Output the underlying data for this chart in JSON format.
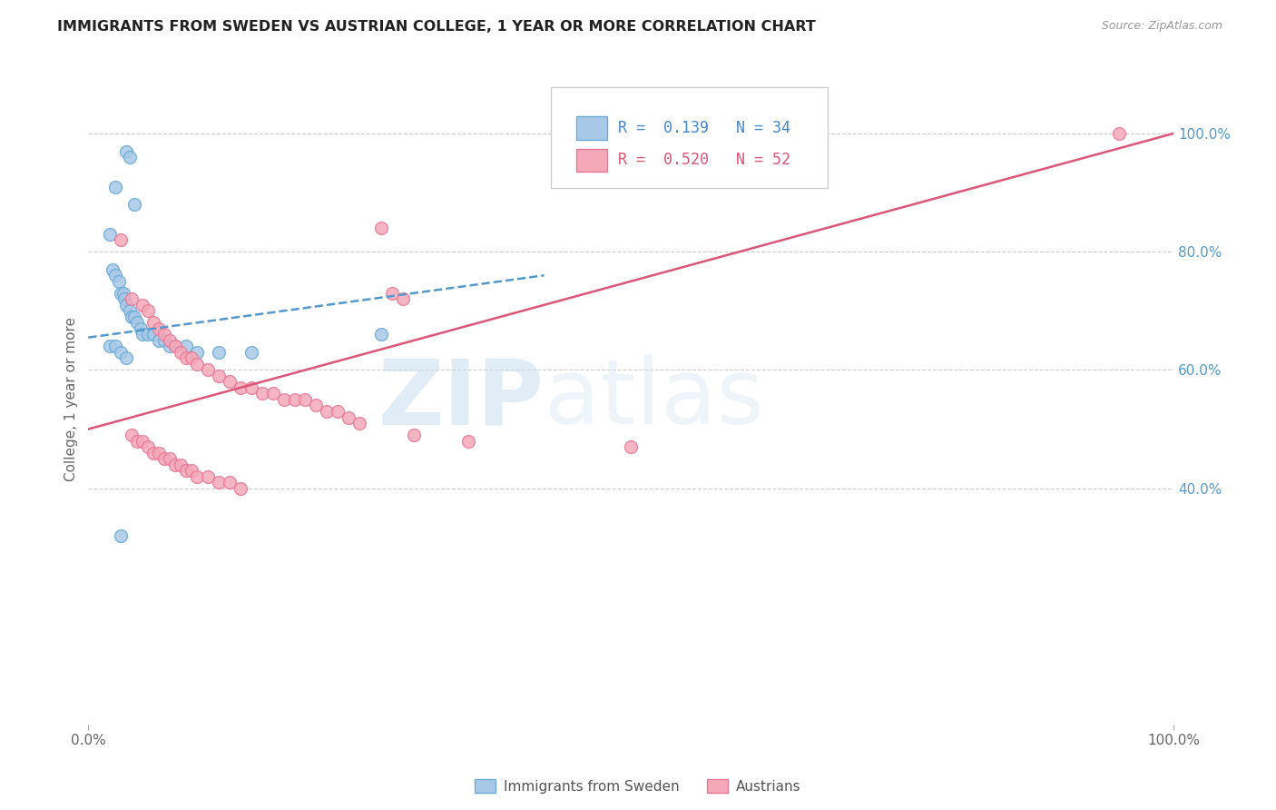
{
  "title": "IMMIGRANTS FROM SWEDEN VS AUSTRIAN COLLEGE, 1 YEAR OR MORE CORRELATION CHART",
  "source": "Source: ZipAtlas.com",
  "ylabel": "College, 1 year or more",
  "legend_label1": "Immigrants from Sweden",
  "legend_label2": "Austrians",
  "r1": "0.139",
  "n1": "34",
  "r2": "0.520",
  "n2": "52",
  "blue_fill": "#a8c8e8",
  "blue_edge": "#6aaad4",
  "pink_fill": "#f4a8b8",
  "pink_edge": "#e87898",
  "blue_line_color": "#5599cc",
  "pink_line_color": "#dd5577",
  "text_color_blue": "#4488cc",
  "text_color_pink": "#dd5577",
  "right_tick_color": "#5599cc",
  "watermark_color": "#ddeeff",
  "blue_scatter_x": [
    0.035,
    0.038,
    0.025,
    0.042,
    0.02,
    0.022,
    0.025,
    0.028,
    0.03,
    0.032,
    0.033,
    0.035,
    0.038,
    0.04,
    0.042,
    0.045,
    0.048,
    0.05,
    0.055,
    0.06,
    0.065,
    0.07,
    0.075,
    0.08,
    0.09,
    0.1,
    0.12,
    0.15,
    0.02,
    0.025,
    0.03,
    0.035,
    0.27,
    0.03
  ],
  "blue_scatter_y": [
    0.97,
    0.96,
    0.91,
    0.88,
    0.83,
    0.77,
    0.76,
    0.75,
    0.73,
    0.73,
    0.72,
    0.71,
    0.7,
    0.69,
    0.69,
    0.68,
    0.67,
    0.66,
    0.66,
    0.66,
    0.65,
    0.65,
    0.64,
    0.64,
    0.64,
    0.63,
    0.63,
    0.63,
    0.64,
    0.64,
    0.63,
    0.62,
    0.66,
    0.32
  ],
  "pink_scatter_x": [
    0.27,
    0.28,
    0.29,
    0.03,
    0.04,
    0.05,
    0.055,
    0.06,
    0.065,
    0.07,
    0.075,
    0.08,
    0.085,
    0.09,
    0.095,
    0.1,
    0.11,
    0.12,
    0.13,
    0.14,
    0.15,
    0.16,
    0.17,
    0.18,
    0.19,
    0.2,
    0.21,
    0.22,
    0.23,
    0.24,
    0.25,
    0.3,
    0.35,
    0.5,
    0.95,
    0.04,
    0.045,
    0.05,
    0.055,
    0.06,
    0.065,
    0.07,
    0.075,
    0.08,
    0.085,
    0.09,
    0.095,
    0.1,
    0.11,
    0.12,
    0.13,
    0.14
  ],
  "pink_scatter_y": [
    0.84,
    0.73,
    0.72,
    0.82,
    0.72,
    0.71,
    0.7,
    0.68,
    0.67,
    0.66,
    0.65,
    0.64,
    0.63,
    0.62,
    0.62,
    0.61,
    0.6,
    0.59,
    0.58,
    0.57,
    0.57,
    0.56,
    0.56,
    0.55,
    0.55,
    0.55,
    0.54,
    0.53,
    0.53,
    0.52,
    0.51,
    0.49,
    0.48,
    0.47,
    1.0,
    0.49,
    0.48,
    0.48,
    0.47,
    0.46,
    0.46,
    0.45,
    0.45,
    0.44,
    0.44,
    0.43,
    0.43,
    0.42,
    0.42,
    0.41,
    0.41,
    0.4
  ]
}
